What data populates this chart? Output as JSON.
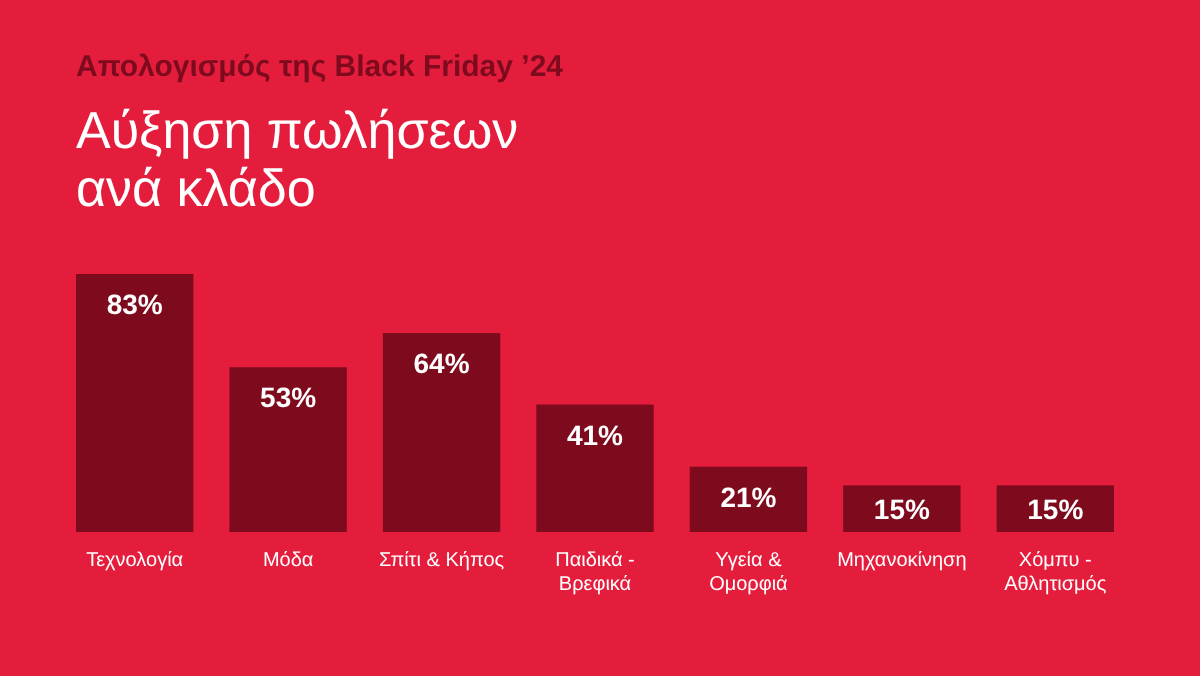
{
  "chart_data": {
    "type": "bar",
    "title": "Απολογισμός της Black Friday ’24",
    "subtitle": "Αύξηση πωλήσεων ανά κλάδο",
    "categories": [
      "Τεχνολογία",
      "Μόδα",
      "Σπίτι & Κήπος",
      "Παιδικά - Βρεφικά",
      "Υγεία & Ομορφιά",
      "Μηχανοκίνηση",
      "Χόμπυ - Αθλητισμός"
    ],
    "values": [
      83,
      53,
      64,
      41,
      21,
      15,
      15
    ],
    "value_labels": [
      "83%",
      "53%",
      "64%",
      "41%",
      "21%",
      "15%",
      "15%"
    ],
    "color": "#7d0b1d"
  }
}
